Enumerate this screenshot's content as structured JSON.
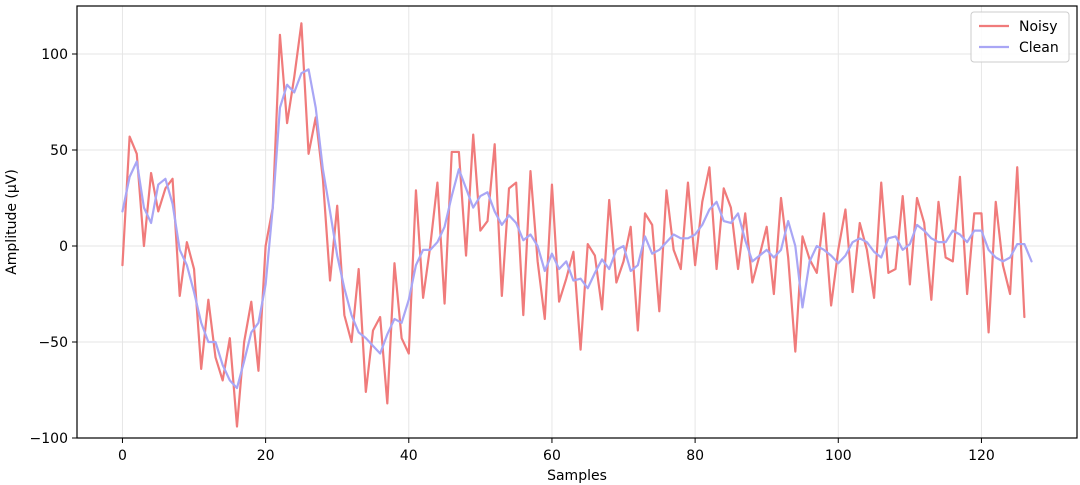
{
  "chart_data": {
    "type": "line",
    "title": "",
    "xlabel": "Samples",
    "ylabel": "Amplitude (μV)",
    "xlim": [
      -6.35,
      133.35
    ],
    "ylim": [
      -100,
      125
    ],
    "xticks": [
      0,
      20,
      40,
      60,
      80,
      100,
      120
    ],
    "yticks": [
      -100,
      -50,
      0,
      50,
      100
    ],
    "ytick_labels": [
      "−100",
      "−50",
      "0",
      "50",
      "100"
    ],
    "grid": true,
    "legend_position": "top-right",
    "series": [
      {
        "name": "Noisy",
        "color": "#f07b7b",
        "values": [
          -10,
          57,
          48,
          0,
          38,
          18,
          30,
          35,
          -26,
          2,
          -12,
          -64,
          -28,
          -58,
          -70,
          -48,
          -94,
          -50,
          -29,
          -65,
          0,
          20,
          110,
          64,
          88,
          116,
          48,
          67,
          35,
          -18,
          21,
          -36,
          -50,
          -12,
          -76,
          -44,
          -37,
          -82,
          -9,
          -48,
          -56,
          29,
          -27,
          0,
          33,
          -30,
          49,
          49,
          -5,
          58,
          8,
          13,
          53,
          -26,
          30,
          33,
          -36,
          39,
          -8,
          -38,
          32,
          -29,
          -17,
          -3,
          -54,
          1,
          -5,
          -33,
          24,
          -19,
          -8,
          10,
          -44,
          17,
          11,
          -34,
          29,
          -2,
          -12,
          33,
          -10,
          23,
          41,
          -12,
          30,
          20,
          -12,
          17,
          -19,
          -5,
          10,
          -25,
          25,
          -6,
          -55,
          5,
          -7,
          -14,
          17,
          -31,
          -2,
          19,
          -24,
          12,
          -2,
          -27,
          33,
          -14,
          -12,
          26,
          -20,
          25,
          12,
          -28,
          23,
          -6,
          -8,
          36,
          -25,
          17,
          17,
          -45,
          23,
          -10,
          -25,
          41,
          -37
        ]
      },
      {
        "name": "Clean",
        "color": "#a9a6f5",
        "values": [
          18,
          36,
          44,
          20,
          12,
          32,
          35,
          22,
          -2,
          -10,
          -24,
          -40,
          -50,
          -50,
          -62,
          -70,
          -74,
          -60,
          -45,
          -40,
          -20,
          20,
          72,
          84,
          80,
          90,
          92,
          72,
          40,
          18,
          -5,
          -22,
          -36,
          -45,
          -48,
          -52,
          -56,
          -46,
          -38,
          -40,
          -28,
          -10,
          -2,
          -2,
          2,
          10,
          26,
          40,
          30,
          20,
          26,
          28,
          18,
          11,
          16,
          12,
          3,
          6,
          0,
          -13,
          -4,
          -12,
          -8,
          -18,
          -17,
          -22,
          -14,
          -7,
          -12,
          -2,
          0,
          -13,
          -10,
          5,
          -4,
          -2,
          2,
          6,
          4,
          4,
          6,
          11,
          19,
          23,
          13,
          12,
          17,
          3,
          -8,
          -5,
          -2,
          -6,
          -2,
          13,
          0,
          -32,
          -8,
          0,
          -2,
          -5,
          -9,
          -5,
          2,
          4,
          2,
          -3,
          -6,
          4,
          5,
          -2,
          1,
          11,
          8,
          4,
          2,
          2,
          8,
          6,
          2,
          8,
          8,
          -2,
          -6,
          -8,
          -6,
          1,
          1,
          -8
        ]
      }
    ]
  }
}
